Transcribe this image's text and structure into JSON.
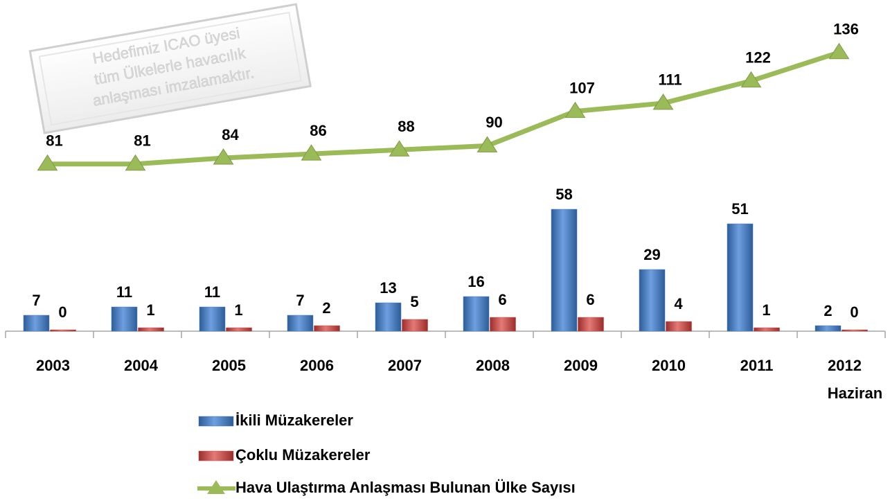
{
  "chart_data": {
    "type": "bar",
    "annotation": [
      "Hedefimiz ICAO üyesi",
      "tüm Ülkelerle havacılık",
      "anlaşması imzalamaktır."
    ],
    "categories": [
      "2003",
      "2004",
      "2005",
      "2006",
      "2007",
      "2008",
      "2009",
      "2010",
      "2011",
      "2012 Haziran"
    ],
    "ylim": [
      0,
      60
    ],
    "y2lim": [
      0,
      140
    ],
    "series": [
      {
        "name": "İkili Müzakereler",
        "color": "#4a7ebb",
        "values": [
          7,
          11,
          11,
          7,
          13,
          16,
          58,
          29,
          51,
          2
        ]
      },
      {
        "name": "Çoklu Müzakereler",
        "color": "#c0504d",
        "values": [
          0,
          1,
          1,
          2,
          5,
          6,
          6,
          4,
          1,
          0
        ]
      },
      {
        "name": "Hava Ulaştırma Anlaşması Bulunan Ülke Sayısı",
        "color": "#9bbb59",
        "type": "line",
        "axis": "y2",
        "values": [
          81,
          81,
          84,
          86,
          88,
          90,
          107,
          111,
          122,
          136
        ]
      }
    ]
  }
}
